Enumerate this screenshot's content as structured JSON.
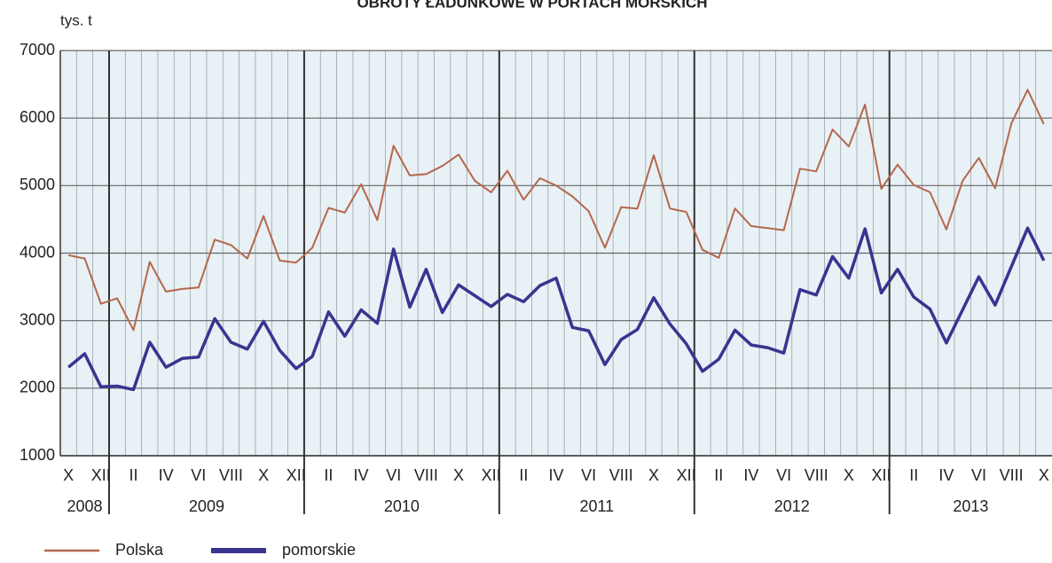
{
  "chart_data": {
    "type": "line",
    "title": "OBROTY ŁADUNKOWE W PORTACH MORSKICH",
    "y_label": "tys. t",
    "categories": [
      "X",
      null,
      "XII",
      null,
      "II",
      null,
      "IV",
      null,
      "VI",
      null,
      "VIII",
      null,
      "X",
      null,
      "XII",
      null,
      "II",
      null,
      "IV",
      null,
      "VI",
      null,
      "VIII",
      null,
      "X",
      null,
      "XII",
      null,
      "II",
      null,
      "IV",
      null,
      "VI",
      null,
      "VIII",
      null,
      "X",
      null,
      "XII",
      null,
      "II",
      null,
      "IV",
      null,
      "VI",
      null,
      "VIII",
      null,
      "X",
      null,
      "XII",
      null,
      "II",
      null,
      "IV",
      null,
      "VI",
      null,
      "VIII",
      null,
      "X"
    ],
    "years": [
      "2008",
      "2009",
      "2010",
      "2011",
      "2012",
      "2013"
    ],
    "series": [
      {
        "name": "Polska",
        "color": "#b5674d",
        "values": [
          3970,
          3920,
          3250,
          3330,
          2860,
          3870,
          3430,
          3470,
          3490,
          4200,
          4120,
          3920,
          4550,
          3890,
          3860,
          4080,
          4670,
          4600,
          5020,
          4490,
          5590,
          5150,
          5170,
          5290,
          5460,
          5070,
          4900,
          5220,
          4790,
          5110,
          5000,
          4840,
          4620,
          4080,
          4680,
          4660,
          5450,
          4660,
          4610,
          4050,
          3930,
          4660,
          4400,
          4370,
          4340,
          5250,
          5210,
          5830,
          5580,
          6200,
          4950,
          5310,
          5010,
          4900,
          4350,
          5070,
          5410,
          4960,
          5920,
          6420,
          5910
        ]
      },
      {
        "name": "pomorskie",
        "color": "#3a3490",
        "values": [
          2310,
          2510,
          2020,
          2030,
          1980,
          2680,
          2310,
          2440,
          2460,
          3030,
          2680,
          2580,
          2990,
          2560,
          2290,
          2470,
          3130,
          2770,
          3160,
          2960,
          4060,
          3200,
          3760,
          3120,
          3530,
          3370,
          3210,
          3390,
          3280,
          3520,
          3630,
          2900,
          2850,
          2350,
          2720,
          2870,
          3340,
          2950,
          2660,
          2250,
          2430,
          2860,
          2640,
          2600,
          2520,
          3460,
          3380,
          3950,
          3630,
          4360,
          3410,
          3760,
          3350,
          3170,
          2670,
          3160,
          3650,
          3230,
          3800,
          4370,
          3890
        ]
      }
    ],
    "ylim": [
      1000,
      7000
    ],
    "yticks": [
      1000,
      2000,
      3000,
      4000,
      5000,
      6000,
      7000
    ],
    "grid": true
  }
}
